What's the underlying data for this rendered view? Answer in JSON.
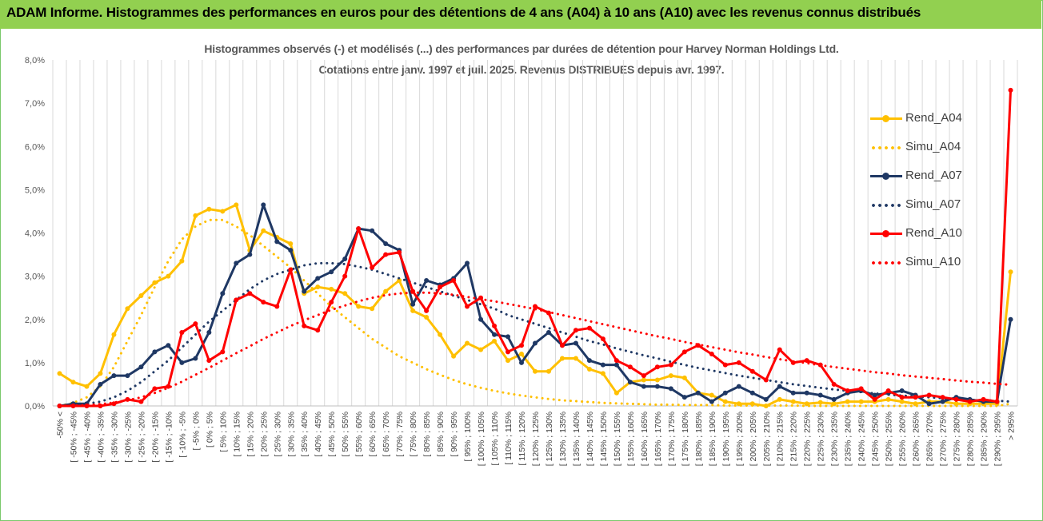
{
  "header": {
    "title": "ADAM Informe. Histogrammes des performances en euros pour des détentions de 4 ans (A04) à 10 ans (A10) avec les revenus connus distribués"
  },
  "chart_data": {
    "type": "line",
    "title": "Histogrammes observés (-) et modélisés (...) des performances par durées de détention pour Harvey Norman Holdings Ltd.",
    "subtitle": "Cotations entre janv. 1997 et juil. 2025. Revenus DISTRIBUES depuis avr. 1997.",
    "xlabel": "",
    "ylabel": "",
    "ylim": [
      0,
      8
    ],
    "y_ticks": [
      "0,0%",
      "1,0%",
      "2,0%",
      "3,0%",
      "4,0%",
      "5,0%",
      "6,0%",
      "7,0%",
      "8,0%"
    ],
    "grid": "vertical",
    "legend_position": "right",
    "categories": [
      "-50% <",
      "[ -50% ; -45%",
      "[ -45% ; -40%",
      "[ -40% ; -35%",
      "[ -35% ; -30%",
      "[ -30% ; -25%",
      "[ -25% ; -20%",
      "[ -20% ; -15%",
      "[ -15% ; -10%",
      "[ -10% ; -5%",
      "[ -5% ; 0%",
      "[ 0% ; 5%",
      "[ 5% ; 10%",
      "[ 10% ; 15%",
      "[ 15% ; 20%",
      "[ 20% ; 25%",
      "[ 25% ; 30%",
      "[ 30% ; 35%",
      "[ 35% ; 40%",
      "[ 40% ; 45%",
      "[ 45% ; 50%",
      "[ 50% ; 55%",
      "[ 55% ; 60%",
      "[ 60% ; 65%",
      "[ 65% ; 70%",
      "[ 70% ; 75%",
      "[ 75% ; 80%",
      "[ 80% ; 85%",
      "[ 85% ; 90%",
      "[ 90% ; 95%",
      "[ 95% ; 100%",
      "[ 100% ; 105%",
      "[ 105% ; 110%",
      "[ 110% ; 115%",
      "[ 115% ; 120%",
      "[ 120% ; 125%",
      "[ 125% ; 130%",
      "[ 130% ; 135%",
      "[ 135% ; 140%",
      "[ 140% ; 145%",
      "[ 145% ; 150%",
      "[ 150% ; 155%",
      "[ 155% ; 160%",
      "[ 160% ; 165%",
      "[ 165% ; 170%",
      "[ 170% ; 175%",
      "[ 175% ; 180%",
      "[ 180% ; 185%",
      "[ 185% ; 190%",
      "[ 190% ; 195%",
      "[ 195% ; 200%",
      "[ 200% ; 205%",
      "[ 205% ; 210%",
      "[ 210% ; 215%",
      "[ 215% ; 220%",
      "[ 220% ; 225%",
      "[ 225% ; 230%",
      "[ 230% ; 235%",
      "[ 235% ; 240%",
      "[ 240% ; 245%",
      "[ 245% ; 250%",
      "[ 250% ; 255%",
      "[ 255% ; 260%",
      "[ 260% ; 265%",
      "[ 265% ; 270%",
      "[ 270% ; 275%",
      "[ 275% ; 280%",
      "[ 280% ; 285%",
      "[ 285% ; 290%",
      "[ 290% ; 295%",
      "> 295%"
    ],
    "series": [
      {
        "name": "Rend_A04",
        "style": "solid",
        "color": "#ffc000",
        "values": [
          0.75,
          0.55,
          0.45,
          0.75,
          1.65,
          2.25,
          2.55,
          2.85,
          3.0,
          3.35,
          4.4,
          4.55,
          4.5,
          4.65,
          3.6,
          4.05,
          3.9,
          3.75,
          2.6,
          2.75,
          2.7,
          2.6,
          2.3,
          2.25,
          2.65,
          2.9,
          2.2,
          2.05,
          1.65,
          1.15,
          1.45,
          1.3,
          1.5,
          1.05,
          1.2,
          0.8,
          0.8,
          1.1,
          1.1,
          0.85,
          0.75,
          0.3,
          0.55,
          0.6,
          0.6,
          0.7,
          0.65,
          0.3,
          0.25,
          0.1,
          0.05,
          0.05,
          0.0,
          0.15,
          0.1,
          0.05,
          0.08,
          0.05,
          0.1,
          0.1,
          0.1,
          0.15,
          0.1,
          0.05,
          0.1,
          0.1,
          0.05,
          0.05,
          0.05,
          0.05,
          3.1
        ]
      },
      {
        "name": "Simu_A04",
        "style": "dotted",
        "color": "#ffc000",
        "values": [
          0.0,
          0.07,
          0.2,
          0.45,
          0.9,
          1.5,
          2.1,
          2.75,
          3.35,
          3.85,
          4.15,
          4.3,
          4.3,
          4.15,
          3.95,
          3.7,
          3.45,
          3.2,
          2.9,
          2.6,
          2.3,
          2.05,
          1.8,
          1.55,
          1.35,
          1.15,
          1.0,
          0.85,
          0.72,
          0.6,
          0.5,
          0.42,
          0.35,
          0.29,
          0.24,
          0.2,
          0.16,
          0.13,
          0.11,
          0.09,
          0.07,
          0.06,
          0.05,
          0.04,
          0.03,
          0.03,
          0.02,
          0.02,
          0.02,
          0.01,
          0.01,
          0.01,
          0.01,
          0.01,
          0.01,
          0.0,
          0.0,
          0.0,
          0.0,
          0.0,
          0.0,
          0.0,
          0.0,
          0.0,
          0.0,
          0.0,
          0.0,
          0.0,
          0.0,
          0.0,
          0.05
        ]
      },
      {
        "name": "Rend_A07",
        "style": "solid",
        "color": "#1f3864",
        "values": [
          0.0,
          0.05,
          0.05,
          0.5,
          0.7,
          0.7,
          0.9,
          1.25,
          1.4,
          1.0,
          1.1,
          1.7,
          2.6,
          3.3,
          3.5,
          4.65,
          3.8,
          3.6,
          2.65,
          2.95,
          3.1,
          3.4,
          4.1,
          4.05,
          3.75,
          3.6,
          2.35,
          2.9,
          2.8,
          2.95,
          3.3,
          2.0,
          1.65,
          1.6,
          1.0,
          1.45,
          1.7,
          1.4,
          1.45,
          1.05,
          0.95,
          0.95,
          0.55,
          0.45,
          0.45,
          0.4,
          0.2,
          0.3,
          0.1,
          0.3,
          0.45,
          0.3,
          0.15,
          0.45,
          0.3,
          0.3,
          0.25,
          0.15,
          0.3,
          0.35,
          0.25,
          0.3,
          0.35,
          0.25,
          0.05,
          0.1,
          0.2,
          0.15,
          0.1,
          0.1,
          2.0
        ]
      },
      {
        "name": "Simu_A07",
        "style": "dotted",
        "color": "#1f3864",
        "values": [
          0.0,
          0.02,
          0.05,
          0.1,
          0.2,
          0.35,
          0.55,
          0.8,
          1.05,
          1.35,
          1.65,
          1.95,
          2.2,
          2.45,
          2.7,
          2.9,
          3.05,
          3.15,
          3.25,
          3.3,
          3.3,
          3.28,
          3.22,
          3.15,
          3.05,
          2.95,
          2.85,
          2.75,
          2.65,
          2.55,
          2.45,
          2.35,
          2.25,
          2.1,
          2.0,
          1.9,
          1.8,
          1.7,
          1.6,
          1.5,
          1.42,
          1.33,
          1.25,
          1.17,
          1.1,
          1.02,
          0.95,
          0.88,
          0.82,
          0.76,
          0.7,
          0.65,
          0.6,
          0.55,
          0.5,
          0.46,
          0.42,
          0.38,
          0.35,
          0.32,
          0.29,
          0.26,
          0.24,
          0.22,
          0.2,
          0.18,
          0.16,
          0.14,
          0.13,
          0.12,
          0.1
        ]
      },
      {
        "name": "Rend_A10",
        "style": "solid",
        "color": "#ff0000",
        "values": [
          0.0,
          0.0,
          0.0,
          0.0,
          0.05,
          0.15,
          0.1,
          0.4,
          0.45,
          1.7,
          1.9,
          1.05,
          1.25,
          2.45,
          2.6,
          2.4,
          2.3,
          3.15,
          1.85,
          1.75,
          2.4,
          3.0,
          4.1,
          3.2,
          3.5,
          3.55,
          2.65,
          2.2,
          2.75,
          2.9,
          2.3,
          2.5,
          1.85,
          1.25,
          1.4,
          2.3,
          2.15,
          1.4,
          1.75,
          1.8,
          1.55,
          1.05,
          0.9,
          0.7,
          0.9,
          0.95,
          1.25,
          1.4,
          1.2,
          0.95,
          1.0,
          0.8,
          0.6,
          1.3,
          1.0,
          1.05,
          0.95,
          0.5,
          0.35,
          0.4,
          0.15,
          0.35,
          0.2,
          0.2,
          0.25,
          0.2,
          0.15,
          0.1,
          0.15,
          0.1,
          7.3
        ]
      },
      {
        "name": "Simu_A10",
        "style": "dotted",
        "color": "#ff0000",
        "values": [
          0.0,
          0.01,
          0.02,
          0.04,
          0.08,
          0.13,
          0.2,
          0.3,
          0.42,
          0.56,
          0.72,
          0.88,
          1.05,
          1.22,
          1.38,
          1.55,
          1.7,
          1.85,
          1.98,
          2.1,
          2.22,
          2.32,
          2.42,
          2.5,
          2.56,
          2.6,
          2.62,
          2.62,
          2.6,
          2.57,
          2.52,
          2.47,
          2.42,
          2.36,
          2.3,
          2.24,
          2.17,
          2.1,
          2.03,
          1.96,
          1.89,
          1.82,
          1.75,
          1.68,
          1.61,
          1.55,
          1.48,
          1.42,
          1.36,
          1.3,
          1.24,
          1.19,
          1.13,
          1.08,
          1.03,
          0.99,
          0.94,
          0.9,
          0.86,
          0.82,
          0.78,
          0.75,
          0.71,
          0.68,
          0.65,
          0.62,
          0.59,
          0.56,
          0.54,
          0.51,
          0.49
        ]
      }
    ]
  }
}
